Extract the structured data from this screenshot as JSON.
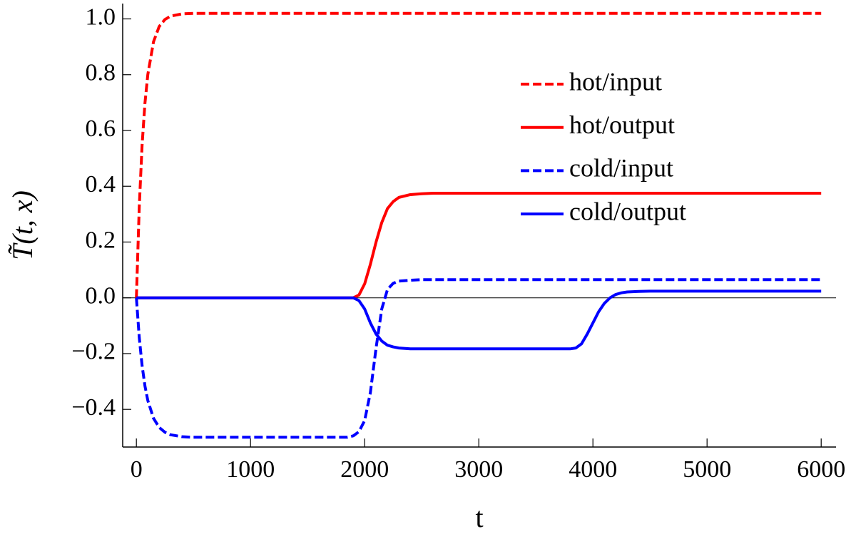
{
  "chart_data": {
    "type": "line",
    "x_label": "t",
    "y_label": "T̃(t, x)",
    "legend": "upper right",
    "xlim": [
      -120,
      6130
    ],
    "ylim": [
      -0.535,
      1.055
    ],
    "xticks": [
      0,
      1000,
      2000,
      3000,
      4000,
      5000,
      6000
    ],
    "yticks": [
      {
        "value": -0.4,
        "label": "−0.4"
      },
      {
        "value": -0.2,
        "label": "−0.2"
      },
      {
        "value": 0,
        "label": "0.0"
      },
      0.2,
      0.4,
      0.6,
      0.8,
      {
        "value": 1,
        "label": "1.0"
      }
    ],
    "x": [
      0,
      25,
      50,
      75,
      100,
      150,
      200,
      250,
      300,
      400,
      500,
      600,
      800,
      1000,
      1200,
      1400,
      1600,
      1800,
      1850,
      1900,
      1950,
      2000,
      2050,
      2100,
      2150,
      2200,
      2250,
      2300,
      2400,
      2500,
      2600,
      2800,
      3000,
      3200,
      3400,
      3600,
      3700,
      3800,
      3850,
      3900,
      3950,
      4000,
      4050,
      4100,
      4150,
      4200,
      4250,
      4300,
      4400,
      4500,
      4600,
      4800,
      5000,
      5500,
      6000
    ],
    "series": [
      {
        "name": "hot/input",
        "color": "#ff0000",
        "linestyle": "dashed",
        "values": [
          0,
          0.325,
          0.548,
          0.698,
          0.8,
          0.918,
          0.973,
          0.998,
          1.01,
          1.018,
          1.02,
          1.02,
          1.02,
          1.02,
          1.02,
          1.02,
          1.02,
          1.02,
          1.02,
          1.02,
          1.02,
          1.02,
          1.02,
          1.02,
          1.02,
          1.02,
          1.02,
          1.02,
          1.02,
          1.02,
          1.02,
          1.02,
          1.02,
          1.02,
          1.02,
          1.02,
          1.02,
          1.02,
          1.02,
          1.02,
          1.02,
          1.02,
          1.02,
          1.02,
          1.02,
          1.02,
          1.02,
          1.02,
          1.02,
          1.02,
          1.02,
          1.02,
          1.02,
          1.02,
          1.02
        ]
      },
      {
        "name": "hot/output",
        "color": "#ff0000",
        "linestyle": "solid",
        "values": [
          0,
          0,
          0,
          0,
          0,
          0,
          0,
          0,
          0,
          0,
          0,
          0,
          0,
          0,
          0,
          0,
          0,
          0,
          0,
          0,
          0.01,
          0.05,
          0.12,
          0.2,
          0.27,
          0.32,
          0.345,
          0.36,
          0.37,
          0.373,
          0.375,
          0.375,
          0.375,
          0.375,
          0.375,
          0.375,
          0.375,
          0.375,
          0.375,
          0.375,
          0.375,
          0.375,
          0.375,
          0.375,
          0.375,
          0.375,
          0.375,
          0.375,
          0.375,
          0.375,
          0.375,
          0.375,
          0.375,
          0.375,
          0.375
        ]
      },
      {
        "name": "cold/input",
        "color": "#0000ff",
        "linestyle": "dashed",
        "values": [
          0,
          -0.142,
          -0.243,
          -0.316,
          -0.368,
          -0.432,
          -0.465,
          -0.482,
          -0.491,
          -0.498,
          -0.5,
          -0.5,
          -0.5,
          -0.5,
          -0.5,
          -0.5,
          -0.5,
          -0.5,
          -0.5,
          -0.495,
          -0.48,
          -0.44,
          -0.34,
          -0.18,
          -0.04,
          0.03,
          0.052,
          0.06,
          0.063,
          0.065,
          0.065,
          0.065,
          0.065,
          0.065,
          0.065,
          0.065,
          0.065,
          0.065,
          0.065,
          0.065,
          0.065,
          0.065,
          0.065,
          0.065,
          0.065,
          0.065,
          0.065,
          0.065,
          0.065,
          0.065,
          0.065,
          0.065,
          0.065,
          0.065,
          0.065
        ]
      },
      {
        "name": "cold/output",
        "color": "#0000ff",
        "linestyle": "solid",
        "values": [
          0,
          0,
          0,
          0,
          0,
          0,
          0,
          0,
          0,
          0,
          0,
          0,
          0,
          0,
          0,
          0,
          0,
          0,
          0,
          0,
          -0.01,
          -0.04,
          -0.09,
          -0.13,
          -0.155,
          -0.17,
          -0.176,
          -0.18,
          -0.183,
          -0.183,
          -0.183,
          -0.183,
          -0.183,
          -0.183,
          -0.183,
          -0.183,
          -0.183,
          -0.183,
          -0.18,
          -0.165,
          -0.13,
          -0.09,
          -0.05,
          -0.02,
          0,
          0.012,
          0.018,
          0.021,
          0.023,
          0.024,
          0.024,
          0.024,
          0.024,
          0.024,
          0.024
        ]
      }
    ]
  }
}
